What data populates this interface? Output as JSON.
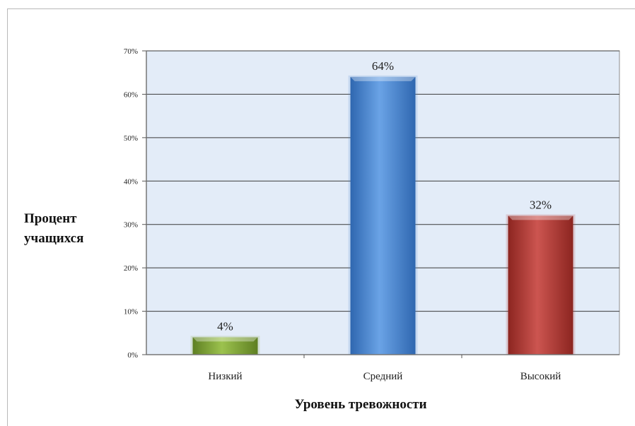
{
  "chart_data": {
    "type": "bar",
    "categories": [
      "Низкий",
      "Средний",
      "Высокий"
    ],
    "values": [
      4,
      64,
      32
    ],
    "data_labels": [
      "4%",
      "64%",
      "32%"
    ],
    "ylabel": [
      "Процент",
      "учащихся"
    ],
    "xlabel": "Уровень тревожности",
    "ylim": [
      0,
      70
    ],
    "yticks": [
      "0%",
      "10%",
      "20%",
      "30%",
      "40%",
      "50%",
      "60%",
      "70%"
    ],
    "grid": true,
    "bar_colors": [
      "#7fa33a",
      "#4a86cf",
      "#b03a33"
    ],
    "plot_background": "#e3ecf8"
  }
}
